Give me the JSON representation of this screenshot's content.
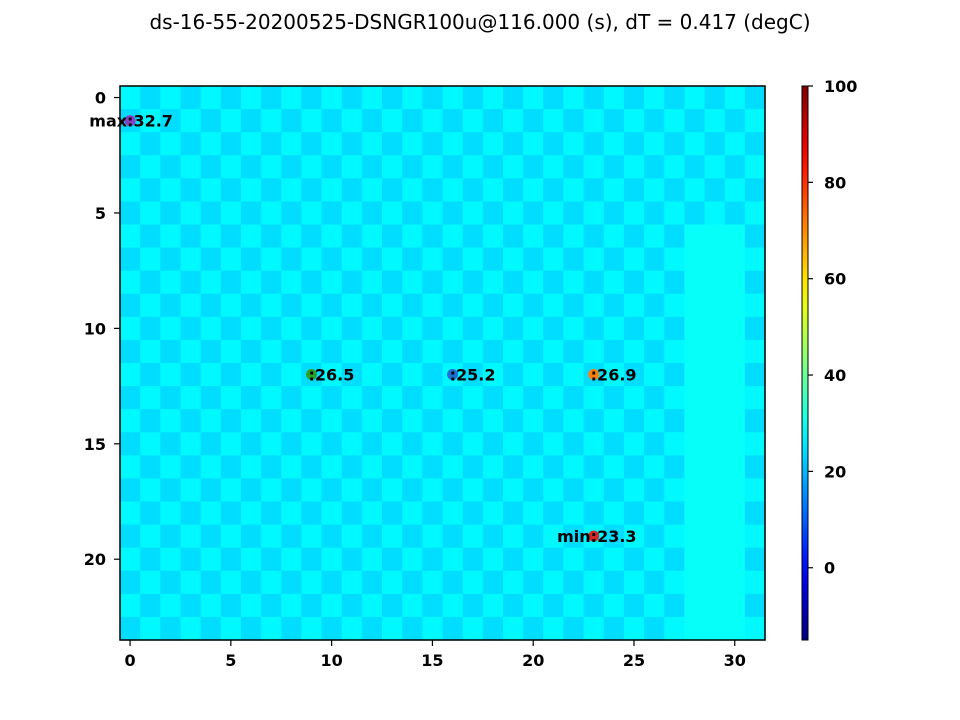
{
  "chart_data": {
    "type": "heatmap",
    "title": "ds-16-55-20200525-DSNGR100u@116.000 (s), dT = 0.417 (degC)",
    "xlabel": "",
    "ylabel": "",
    "grid": false,
    "colormap": "jet",
    "colorbar": {
      "range": [
        -15,
        100
      ],
      "ticks": [
        0,
        20,
        40,
        60,
        80,
        100
      ],
      "placement": "right"
    },
    "rows": 24,
    "cols": 32,
    "x_ticks": [
      0,
      5,
      10,
      15,
      20,
      25,
      30
    ],
    "y_ticks": [
      0,
      5,
      10,
      15,
      20
    ],
    "xlim": [
      -0.5,
      31.5
    ],
    "ylim": [
      23.5,
      -0.5
    ],
    "base_value_even": 27.5,
    "base_value_odd": 24.3,
    "warm_band_columns": [
      28,
      29,
      30
    ],
    "warm_band_value": 28.8,
    "markers": [
      {
        "x": 0,
        "y": 1,
        "label": "max:32.7",
        "color": "#8a3fc2"
      },
      {
        "x": 9,
        "y": 12,
        "label": ":26.5",
        "color": "#2ca02c"
      },
      {
        "x": 16,
        "y": 12,
        "label": ":25.2",
        "color": "#1f6fd4"
      },
      {
        "x": 23,
        "y": 12,
        "label": ":26.9",
        "color": "#ff7f0e"
      },
      {
        "x": 23,
        "y": 19,
        "label": "min:23.3",
        "color": "#d62728"
      }
    ]
  }
}
